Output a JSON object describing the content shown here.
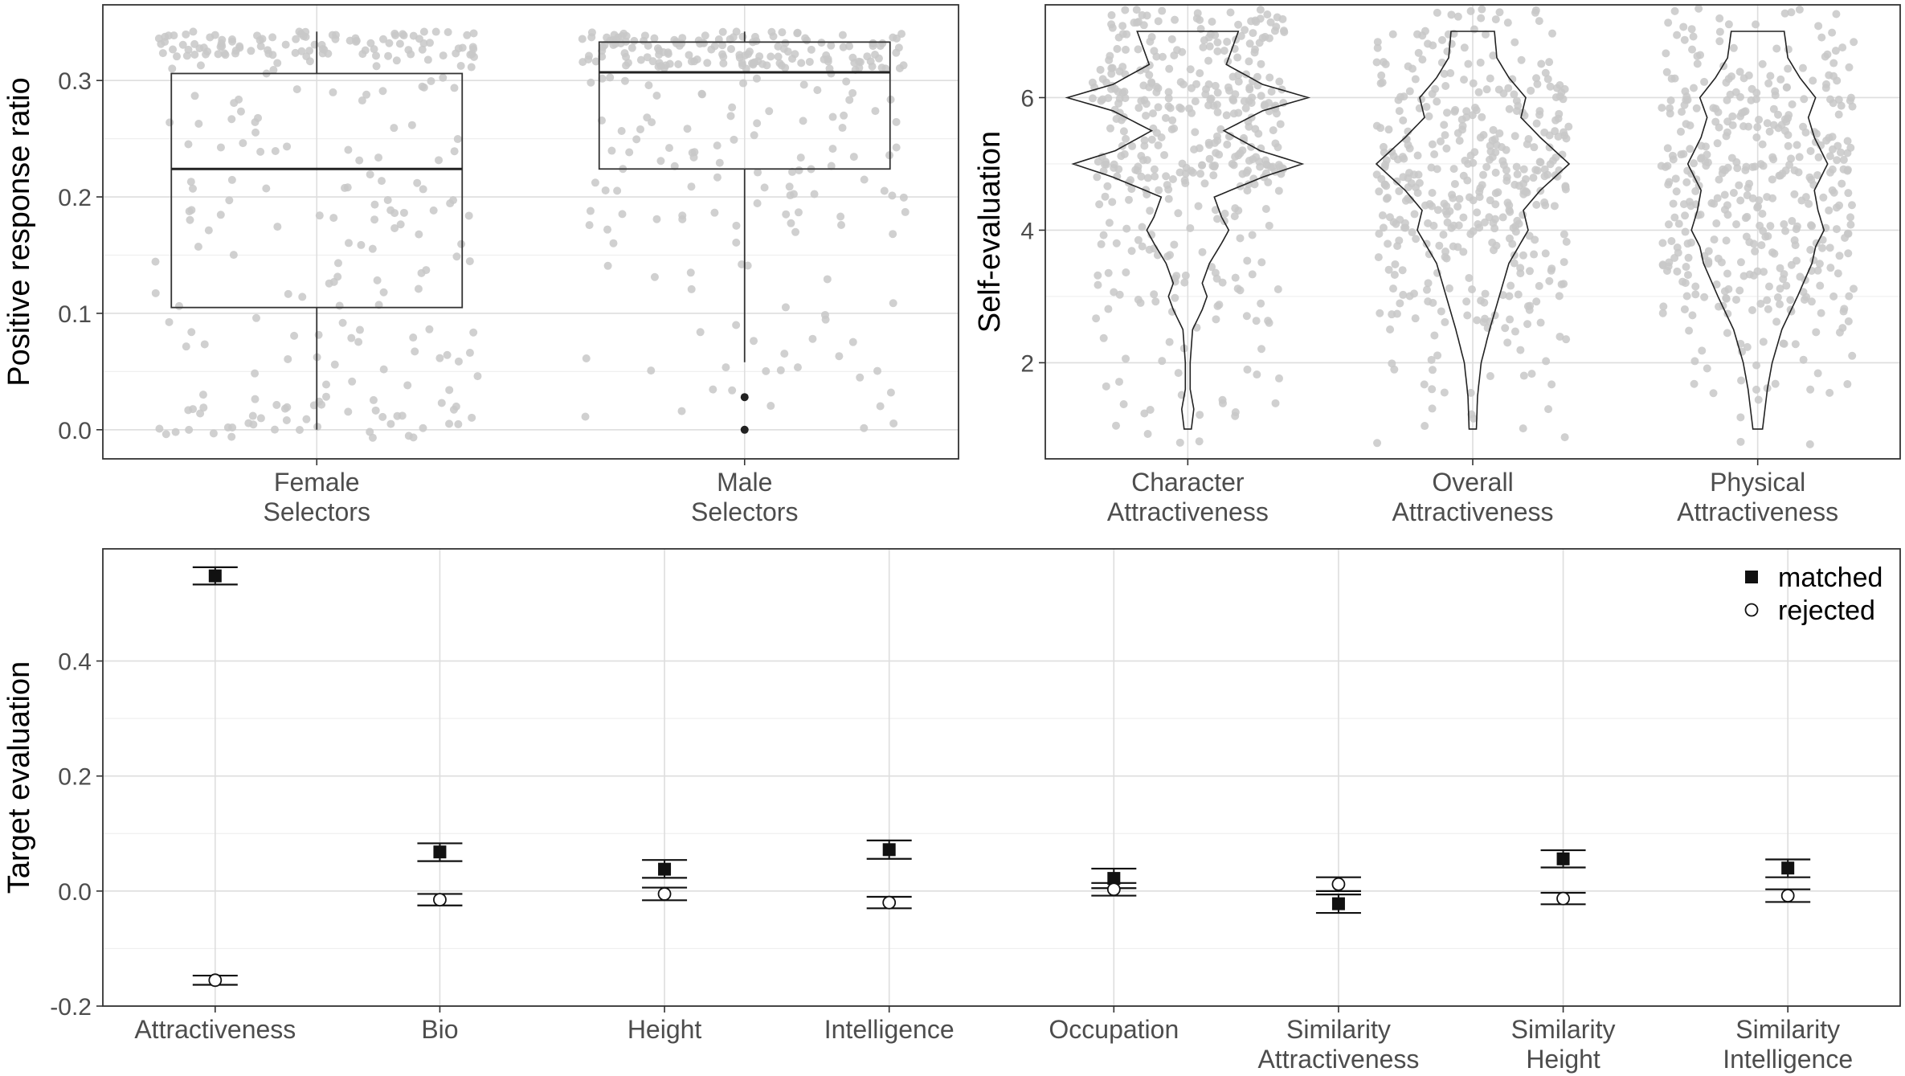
{
  "chart_data": [
    {
      "type": "box",
      "panel": "top-left",
      "title": "",
      "xlabel": "",
      "ylabel": "Positive response ratio",
      "ylim": [
        -0.025,
        0.365
      ],
      "yticks": [
        0.0,
        0.1,
        0.2,
        0.3
      ],
      "ytick_labels": [
        "0.0",
        "0.1",
        "0.2",
        "0.3"
      ],
      "grid": true,
      "categories": [
        {
          "label": [
            "Female",
            "Selectors"
          ]
        },
        {
          "label": [
            "Male",
            "Selectors"
          ]
        }
      ],
      "boxes": [
        {
          "category": "Female Selectors",
          "min": 0.0,
          "q1": 0.105,
          "median": 0.224,
          "q3": 0.306,
          "max": 0.342,
          "outliers": []
        },
        {
          "category": "Male Selectors",
          "min": 0.058,
          "q1": 0.224,
          "median": 0.307,
          "q3": 0.333,
          "max": 0.342,
          "outliers": [
            0.0,
            0.028
          ]
        }
      ],
      "jitter": {
        "shown": true,
        "color": "#c8c8c8",
        "approx_points_per_group": 280
      }
    },
    {
      "type": "violin",
      "panel": "top-right",
      "title": "",
      "xlabel": "",
      "ylabel": "Self-evaluation",
      "ylim": [
        0.55,
        7.4
      ],
      "yticks": [
        2,
        4,
        6
      ],
      "ytick_labels": [
        "2",
        "4",
        "6"
      ],
      "grid": true,
      "categories": [
        {
          "label": [
            "Character",
            "Attractiveness"
          ]
        },
        {
          "label": [
            "Overall",
            "Attractiveness"
          ]
        },
        {
          "label": [
            "Physical",
            "Attractiveness"
          ]
        }
      ],
      "violins": [
        {
          "category": "Character Attractiveness",
          "min": 1,
          "max": 7,
          "density": [
            [
              1,
              0.03
            ],
            [
              1.3,
              0.05
            ],
            [
              1.6,
              0.02
            ],
            [
              2,
              0.02
            ],
            [
              2.5,
              0.04
            ],
            [
              2.8,
              0.12
            ],
            [
              3,
              0.16
            ],
            [
              3.2,
              0.12
            ],
            [
              3.5,
              0.18
            ],
            [
              3.8,
              0.28
            ],
            [
              4,
              0.34
            ],
            [
              4.2,
              0.28
            ],
            [
              4.5,
              0.22
            ],
            [
              4.8,
              0.62
            ],
            [
              5,
              0.95
            ],
            [
              5.2,
              0.6
            ],
            [
              5.5,
              0.3
            ],
            [
              5.8,
              0.62
            ],
            [
              6,
              1.0
            ],
            [
              6.2,
              0.62
            ],
            [
              6.5,
              0.32
            ],
            [
              6.8,
              0.38
            ],
            [
              7,
              0.42
            ]
          ]
        },
        {
          "category": "Overall Attractiveness",
          "min": 1,
          "max": 7,
          "density": [
            [
              1,
              0.03
            ],
            [
              1.5,
              0.04
            ],
            [
              2,
              0.07
            ],
            [
              2.5,
              0.14
            ],
            [
              3,
              0.22
            ],
            [
              3.5,
              0.3
            ],
            [
              4,
              0.46
            ],
            [
              4.3,
              0.42
            ],
            [
              4.6,
              0.56
            ],
            [
              5,
              0.8
            ],
            [
              5.4,
              0.56
            ],
            [
              5.7,
              0.4
            ],
            [
              6,
              0.44
            ],
            [
              6.3,
              0.3
            ],
            [
              6.6,
              0.2
            ],
            [
              7,
              0.18
            ]
          ]
        },
        {
          "category": "Physical Attractiveness",
          "min": 1,
          "max": 7,
          "density": [
            [
              1,
              0.04
            ],
            [
              1.3,
              0.06
            ],
            [
              1.6,
              0.08
            ],
            [
              2,
              0.12
            ],
            [
              2.5,
              0.2
            ],
            [
              3,
              0.33
            ],
            [
              3.5,
              0.45
            ],
            [
              3.75,
              0.48
            ],
            [
              4,
              0.55
            ],
            [
              4.3,
              0.5
            ],
            [
              4.6,
              0.47
            ],
            [
              5,
              0.58
            ],
            [
              5.4,
              0.47
            ],
            [
              5.7,
              0.42
            ],
            [
              6,
              0.48
            ],
            [
              6.3,
              0.35
            ],
            [
              6.6,
              0.25
            ],
            [
              7,
              0.22
            ]
          ]
        }
      ],
      "jitter": {
        "shown": true,
        "color": "#c8c8c8",
        "approx_points_per_group": 420
      }
    },
    {
      "type": "scatter",
      "panel": "bottom",
      "title": "",
      "xlabel": "",
      "ylabel": "Target evaluation",
      "ylim": [
        -0.2,
        0.595
      ],
      "yticks": [
        -0.2,
        0.0,
        0.2,
        0.4
      ],
      "ytick_labels": [
        "-0.2",
        "0.0",
        "0.2",
        "0.4"
      ],
      "grid": true,
      "legend": "top-right",
      "categories": [
        {
          "label": [
            "Attractiveness"
          ]
        },
        {
          "label": [
            "Bio"
          ]
        },
        {
          "label": [
            "Height"
          ]
        },
        {
          "label": [
            "Intelligence"
          ]
        },
        {
          "label": [
            "Occupation"
          ]
        },
        {
          "label": [
            "Similarity",
            "Attractiveness"
          ]
        },
        {
          "label": [
            "Similarity",
            "Height"
          ]
        },
        {
          "label": [
            "Similarity",
            "Intelligence"
          ]
        }
      ],
      "series": [
        {
          "name": "matched",
          "marker": "filled-square",
          "values": [
            0.548,
            0.068,
            0.038,
            0.072,
            0.022,
            -0.022,
            0.056,
            0.04
          ],
          "lower": [
            0.533,
            0.052,
            0.023,
            0.056,
            0.005,
            -0.038,
            0.041,
            0.024
          ],
          "upper": [
            0.563,
            0.083,
            0.054,
            0.088,
            0.039,
            -0.006,
            0.071,
            0.055
          ]
        },
        {
          "name": "rejected",
          "marker": "open-circle",
          "values": [
            -0.155,
            -0.015,
            -0.005,
            -0.02,
            0.003,
            0.012,
            -0.013,
            -0.008
          ],
          "lower": [
            -0.163,
            -0.025,
            -0.016,
            -0.03,
            -0.008,
            0.0,
            -0.023,
            -0.019
          ],
          "upper": [
            -0.147,
            -0.005,
            0.006,
            -0.01,
            0.014,
            0.024,
            -0.003,
            0.003
          ]
        }
      ]
    }
  ]
}
